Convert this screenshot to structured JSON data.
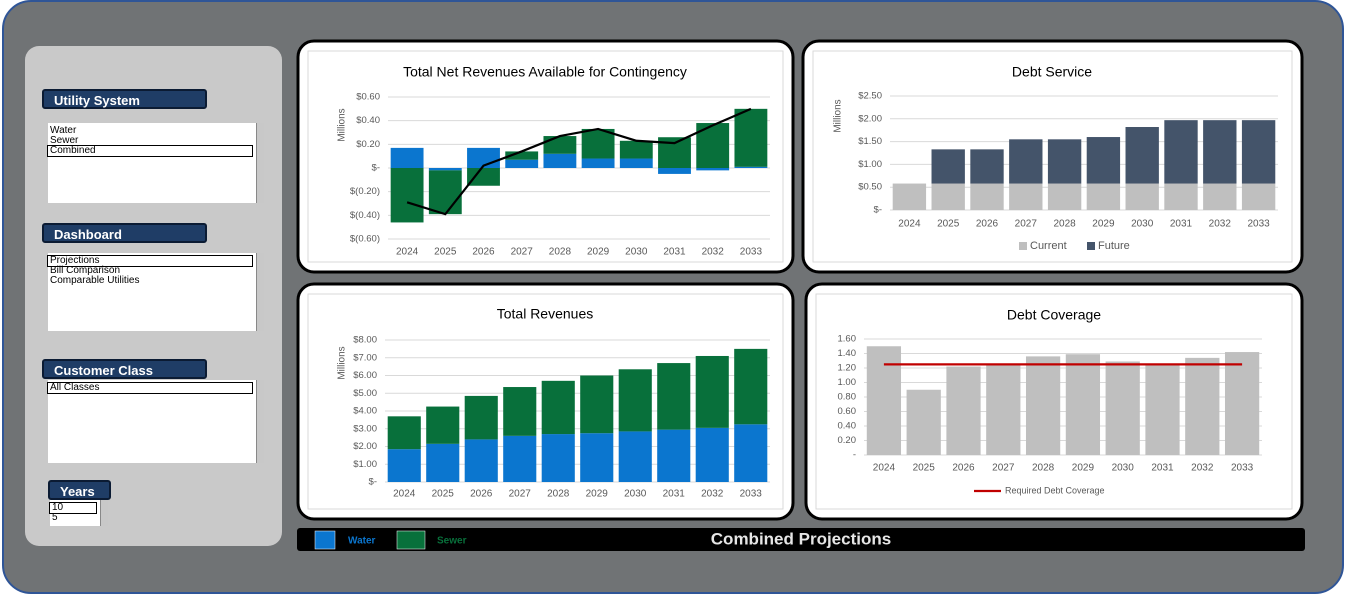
{
  "sidebar": [
    {
      "label": "Utility System",
      "items": [
        "Water",
        "Sewer",
        "Combined"
      ],
      "selected": 2
    },
    {
      "label": "Dashboard",
      "items": [
        "Projections",
        "Bill Comparison",
        "Comparable Utilities"
      ],
      "selected": 0
    },
    {
      "label": "Customer Class",
      "items": [
        "All Classes"
      ],
      "selected": 0
    },
    {
      "label": "Years",
      "items": [
        "10",
        "5"
      ],
      "selected": 0
    }
  ],
  "footer_title": "Combined Projections",
  "chart_data": [
    {
      "type": "bar",
      "stacked": true,
      "title": "Total Net Revenues Available for Contingency",
      "y_label": "Millions",
      "categories": [
        "2024",
        "2025",
        "2026",
        "2027",
        "2028",
        "2029",
        "2030",
        "2031",
        "2032",
        "2033"
      ],
      "series": [
        {
          "name": "Water",
          "color": "#0b76cf",
          "values": [
            0.17,
            -0.02,
            0.17,
            0.07,
            0.12,
            0.08,
            0.08,
            -0.05,
            -0.02,
            0.01
          ]
        },
        {
          "name": "Sewer",
          "color": "#08703b",
          "values": [
            -0.46,
            -0.37,
            -0.15,
            0.07,
            0.15,
            0.25,
            0.15,
            0.26,
            0.38,
            0.49
          ]
        },
        {
          "type": "line",
          "color": "#000000",
          "values": [
            -0.29,
            -0.39,
            0.02,
            0.14,
            0.27,
            0.33,
            0.23,
            0.21,
            0.36,
            0.5
          ]
        }
      ],
      "ylim": [
        -0.6,
        0.6
      ],
      "yticks": [
        {
          "value": -0.6,
          "label": "$(0.60)"
        },
        {
          "value": -0.4,
          "label": "$(0.40)"
        },
        {
          "value": -0.2,
          "label": "$(0.20)"
        },
        {
          "value": 0,
          "label": "$-"
        },
        {
          "value": 0.2,
          "label": "$0.20"
        },
        {
          "value": 0.4,
          "label": "$0.40"
        },
        {
          "value": 0.6,
          "label": "$0.60"
        }
      ],
      "grid": true
    },
    {
      "type": "bar",
      "stacked": true,
      "title": "Debt Service",
      "y_label": "Millions",
      "legend": "bottom",
      "categories": [
        "2024",
        "2025",
        "2026",
        "2027",
        "2028",
        "2029",
        "2030",
        "2031",
        "2032",
        "2033"
      ],
      "series": [
        {
          "name": "Current",
          "color": "#bfbfbf",
          "values": [
            0.58,
            0.58,
            0.58,
            0.58,
            0.58,
            0.58,
            0.58,
            0.58,
            0.58,
            0.58
          ]
        },
        {
          "name": "Future",
          "color": "#44546a",
          "values": [
            0,
            0.75,
            0.75,
            0.97,
            0.97,
            1.02,
            1.24,
            1.39,
            1.39,
            1.39
          ]
        }
      ],
      "ylim": [
        0,
        2.5
      ],
      "yticks": [
        {
          "value": 0,
          "label": "$-"
        },
        {
          "value": 0.5,
          "label": "$0.50"
        },
        {
          "value": 1,
          "label": "$1.00"
        },
        {
          "value": 1.5,
          "label": "$1.50"
        },
        {
          "value": 2,
          "label": "$2.00"
        },
        {
          "value": 2.5,
          "label": "$2.50"
        }
      ],
      "grid": true
    },
    {
      "type": "bar",
      "stacked": true,
      "title": "Total Revenues",
      "y_label": "Millions",
      "categories": [
        "2024",
        "2025",
        "2026",
        "2027",
        "2028",
        "2029",
        "2030",
        "2031",
        "2032",
        "2033"
      ],
      "series": [
        {
          "color": "#0b76cf",
          "values": [
            1.85,
            2.15,
            2.4,
            2.6,
            2.7,
            2.75,
            2.85,
            2.95,
            3.05,
            3.25
          ]
        },
        {
          "color": "#08703b",
          "values": [
            1.85,
            2.1,
            2.45,
            2.75,
            3.0,
            3.25,
            3.5,
            3.75,
            4.05,
            4.25
          ]
        }
      ],
      "ylim": [
        0,
        8
      ],
      "yticks": [
        {
          "value": 0,
          "label": "$-"
        },
        {
          "value": 1,
          "label": "$1.00"
        },
        {
          "value": 2,
          "label": "$2.00"
        },
        {
          "value": 3,
          "label": "$3.00"
        },
        {
          "value": 4,
          "label": "$4.00"
        },
        {
          "value": 5,
          "label": "$5.00"
        },
        {
          "value": 6,
          "label": "$6.00"
        },
        {
          "value": 7,
          "label": "$7.00"
        },
        {
          "value": 8,
          "label": "$8.00"
        }
      ],
      "grid": true
    },
    {
      "type": "bar",
      "title": "Debt Coverage",
      "legend": "bottom",
      "categories": [
        "2024",
        "2025",
        "2026",
        "2027",
        "2028",
        "2029",
        "2030",
        "2031",
        "2032",
        "2033"
      ],
      "series": [
        {
          "color": "#bfbfbf",
          "values": [
            1.5,
            0.9,
            1.22,
            1.25,
            1.36,
            1.39,
            1.29,
            1.25,
            1.34,
            1.42
          ]
        },
        {
          "type": "line",
          "name": "Required Debt Coverage",
          "color": "#c00000",
          "values": [
            1.25,
            1.25,
            1.25,
            1.25,
            1.25,
            1.25,
            1.25,
            1.25,
            1.25,
            1.25
          ]
        }
      ],
      "ylim": [
        0,
        1.6
      ],
      "yticks": [
        {
          "value": 0,
          "label": "-"
        },
        {
          "value": 0.2,
          "label": "0.20"
        },
        {
          "value": 0.4,
          "label": "0.40"
        },
        {
          "value": 0.6,
          "label": "0.60"
        },
        {
          "value": 0.8,
          "label": "0.80"
        },
        {
          "value": 1,
          "label": "1.00"
        },
        {
          "value": 1.2,
          "label": "1.20"
        },
        {
          "value": 1.4,
          "label": "1.40"
        },
        {
          "value": 1.6,
          "label": "1.60"
        }
      ],
      "grid": true
    }
  ]
}
